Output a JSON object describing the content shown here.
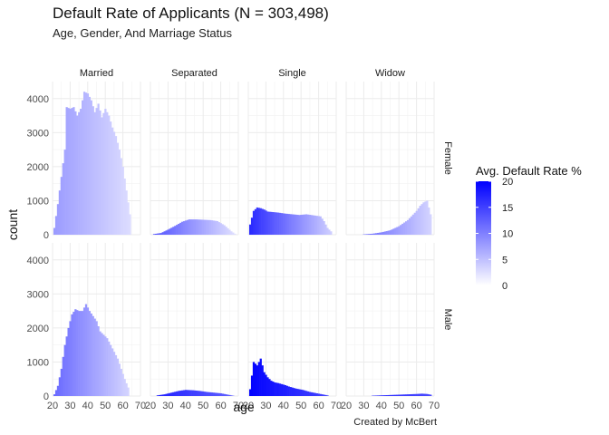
{
  "title": "Default Rate of Applicants (N = 303,498)",
  "subtitle": "Age, Gender, And Marriage Status",
  "caption": "Created by McBert",
  "legend": {
    "title": "Avg. Default Rate %",
    "ticks": [
      "20",
      "15",
      "10",
      "5",
      "0"
    ],
    "low_color": "#ffffff",
    "high_color": "#0000ff",
    "range": [
      0,
      20
    ]
  },
  "chart_data": {
    "type": "bar",
    "facets": {
      "columns": [
        "Married",
        "Separated",
        "Single",
        "Widow"
      ],
      "rows": [
        "Female",
        "Male"
      ]
    },
    "xlabel": "age",
    "ylabel": "count",
    "xlim": [
      20,
      70
    ],
    "ylim": [
      0,
      4500
    ],
    "x_ticks": [
      "20",
      "30",
      "40",
      "50",
      "60",
      "70"
    ],
    "y_ticks": [
      "0",
      "1000",
      "2000",
      "3000",
      "4000"
    ],
    "grid": true,
    "legend_position": "right",
    "series": [
      {
        "row": "Female",
        "column": "Married",
        "points": [
          [
            21,
            200
          ],
          [
            23,
            900
          ],
          [
            25,
            1700
          ],
          [
            27,
            2500
          ],
          [
            28,
            3750
          ],
          [
            30,
            3700
          ],
          [
            32,
            3750
          ],
          [
            34,
            3500
          ],
          [
            36,
            3700
          ],
          [
            38,
            4200
          ],
          [
            40,
            4150
          ],
          [
            42,
            3950
          ],
          [
            44,
            3600
          ],
          [
            46,
            3850
          ],
          [
            48,
            3450
          ],
          [
            50,
            3700
          ],
          [
            52,
            3500
          ],
          [
            54,
            3150
          ],
          [
            56,
            2900
          ],
          [
            58,
            2500
          ],
          [
            60,
            2000
          ],
          [
            62,
            1300
          ],
          [
            64,
            600
          ]
        ],
        "rates": [
          [
            20,
            8
          ],
          [
            70,
            2
          ]
        ]
      },
      {
        "row": "Female",
        "column": "Separated",
        "points": [
          [
            22,
            20
          ],
          [
            26,
            50
          ],
          [
            30,
            150
          ],
          [
            34,
            260
          ],
          [
            38,
            380
          ],
          [
            42,
            450
          ],
          [
            46,
            450
          ],
          [
            50,
            440
          ],
          [
            54,
            430
          ],
          [
            58,
            400
          ],
          [
            62,
            280
          ],
          [
            66,
            100
          ],
          [
            68,
            30
          ]
        ],
        "rates": [
          [
            20,
            14
          ],
          [
            70,
            2
          ]
        ]
      },
      {
        "row": "Female",
        "column": "Single",
        "points": [
          [
            21,
            300
          ],
          [
            23,
            700
          ],
          [
            25,
            800
          ],
          [
            27,
            780
          ],
          [
            29,
            740
          ],
          [
            31,
            680
          ],
          [
            33,
            670
          ],
          [
            37,
            650
          ],
          [
            41,
            620
          ],
          [
            45,
            600
          ],
          [
            49,
            580
          ],
          [
            53,
            600
          ],
          [
            57,
            570
          ],
          [
            61,
            540
          ],
          [
            63,
            400
          ],
          [
            65,
            200
          ],
          [
            67,
            100
          ]
        ],
        "rates": [
          [
            20,
            17
          ],
          [
            70,
            3
          ]
        ]
      },
      {
        "row": "Female",
        "column": "Widow",
        "points": [
          [
            30,
            10
          ],
          [
            35,
            30
          ],
          [
            40,
            70
          ],
          [
            45,
            130
          ],
          [
            50,
            250
          ],
          [
            55,
            430
          ],
          [
            60,
            700
          ],
          [
            62,
            850
          ],
          [
            64,
            950
          ],
          [
            66,
            1000
          ],
          [
            68,
            600
          ]
        ],
        "rates": [
          [
            20,
            14
          ],
          [
            70,
            3
          ]
        ]
      },
      {
        "row": "Male",
        "column": "Married",
        "points": [
          [
            21,
            50
          ],
          [
            23,
            300
          ],
          [
            25,
            800
          ],
          [
            27,
            1500
          ],
          [
            29,
            2000
          ],
          [
            31,
            2400
          ],
          [
            33,
            2550
          ],
          [
            35,
            2500
          ],
          [
            37,
            2500
          ],
          [
            39,
            2700
          ],
          [
            41,
            2500
          ],
          [
            43,
            2350
          ],
          [
            45,
            2200
          ],
          [
            47,
            1900
          ],
          [
            49,
            1800
          ],
          [
            51,
            1700
          ],
          [
            53,
            1500
          ],
          [
            55,
            1300
          ],
          [
            57,
            1100
          ],
          [
            59,
            800
          ],
          [
            61,
            500
          ],
          [
            63,
            250
          ]
        ],
        "rates": [
          [
            20,
            12
          ],
          [
            70,
            2
          ]
        ]
      },
      {
        "row": "Male",
        "column": "Separated",
        "points": [
          [
            24,
            20
          ],
          [
            28,
            50
          ],
          [
            32,
            100
          ],
          [
            36,
            150
          ],
          [
            40,
            180
          ],
          [
            44,
            170
          ],
          [
            48,
            150
          ],
          [
            52,
            120
          ],
          [
            56,
            100
          ],
          [
            60,
            80
          ],
          [
            64,
            40
          ],
          [
            67,
            10
          ]
        ],
        "rates": [
          [
            20,
            18
          ],
          [
            70,
            12
          ]
        ]
      },
      {
        "row": "Male",
        "column": "Single",
        "points": [
          [
            21,
            200
          ],
          [
            23,
            1000
          ],
          [
            25,
            900
          ],
          [
            27,
            1100
          ],
          [
            29,
            700
          ],
          [
            31,
            550
          ],
          [
            33,
            450
          ],
          [
            35,
            400
          ],
          [
            37,
            380
          ],
          [
            39,
            350
          ],
          [
            41,
            320
          ],
          [
            43,
            280
          ],
          [
            45,
            250
          ],
          [
            47,
            220
          ],
          [
            49,
            200
          ],
          [
            51,
            180
          ],
          [
            53,
            150
          ],
          [
            55,
            120
          ],
          [
            57,
            100
          ],
          [
            59,
            80
          ],
          [
            61,
            60
          ],
          [
            63,
            40
          ],
          [
            65,
            20
          ]
        ],
        "rates": [
          [
            20,
            20
          ],
          [
            70,
            14
          ]
        ]
      },
      {
        "row": "Male",
        "column": "Widow",
        "points": [
          [
            35,
            10
          ],
          [
            40,
            20
          ],
          [
            45,
            30
          ],
          [
            50,
            40
          ],
          [
            55,
            50
          ],
          [
            60,
            60
          ],
          [
            63,
            70
          ],
          [
            66,
            60
          ],
          [
            68,
            40
          ]
        ],
        "rates": [
          [
            20,
            18
          ],
          [
            70,
            14
          ]
        ]
      }
    ]
  }
}
